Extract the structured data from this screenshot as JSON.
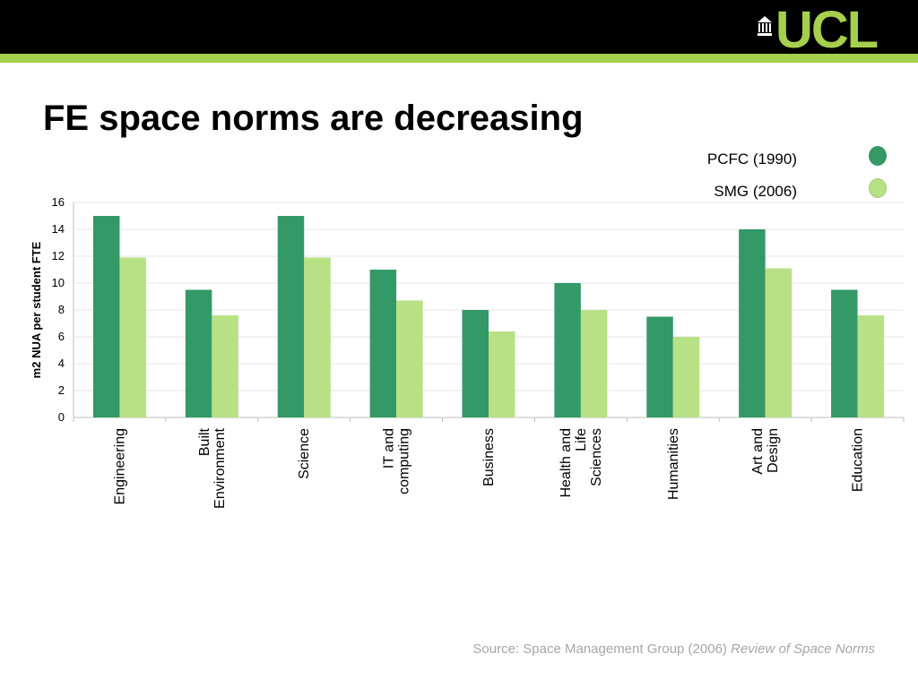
{
  "slide": {
    "title": "FE space norms are decreasing",
    "logo_text": "UCL",
    "source_prefix": "Source: Space Management Group (2006)",
    "source_italic": "Review of Space Norms",
    "colors": {
      "header_bar": "#000000",
      "accent": "#a5cf4c",
      "source_text": "#a6a6a6"
    }
  },
  "chart_data": {
    "type": "bar",
    "ylabel": "m2 NUA per student FTE",
    "xlabel": "",
    "ylim": [
      0,
      16
    ],
    "yticks": [
      0,
      2,
      4,
      6,
      8,
      10,
      12,
      14,
      16
    ],
    "grid": true,
    "legend_position": "top-right",
    "categories": [
      "Engineering",
      "Built Environment",
      "Science",
      "IT and computing",
      "Business",
      "Health and Life Sciences",
      "Humanities",
      "Art and Design",
      "Education"
    ],
    "category_lines": [
      [
        "Engineering"
      ],
      [
        "Built",
        "Environment"
      ],
      [
        "Science"
      ],
      [
        "IT and",
        "computing"
      ],
      [
        "Business"
      ],
      [
        "Health and",
        "Life",
        "Sciences"
      ],
      [
        "Humanities"
      ],
      [
        "Art and",
        "Design"
      ],
      [
        "Education"
      ]
    ],
    "series": [
      {
        "name": "PCFC (1990)",
        "color": "#339966",
        "values": [
          15,
          9.5,
          15,
          11,
          8,
          10,
          7.5,
          14,
          9.5
        ]
      },
      {
        "name": "SMG (2006)",
        "color": "#b8e085",
        "values": [
          11.9,
          7.6,
          11.9,
          8.7,
          6.4,
          8,
          6,
          11.1,
          7.6
        ]
      }
    ]
  }
}
